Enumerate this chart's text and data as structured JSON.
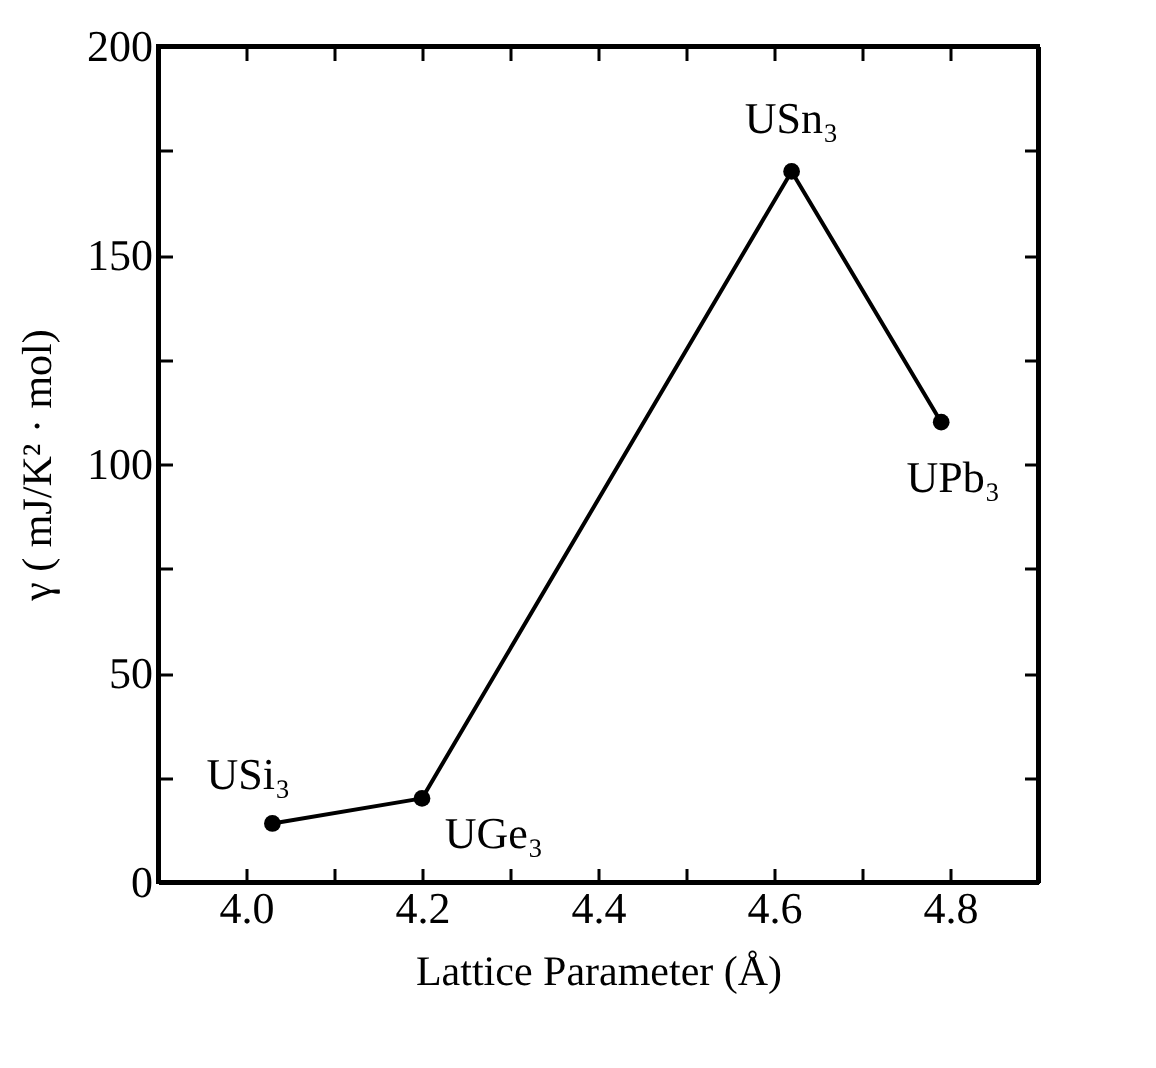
{
  "chart_data": {
    "type": "line",
    "xlabel": "Lattice Parameter (Å)",
    "ylabel": "γ ( mJ/K² · mol)",
    "x": [
      4.03,
      4.2,
      4.62,
      4.79
    ],
    "series": [
      {
        "color": "#000000",
        "values": [
          14,
          20,
          170,
          110
        ]
      }
    ],
    "marker": "circle",
    "grid": false,
    "legend": false,
    "xlim": [
      3.9,
      4.9
    ],
    "xticks": [
      {
        "value": 4,
        "label": "4.0"
      },
      {
        "value": 4.1,
        "label": null
      },
      {
        "value": 4.2,
        "label": "4.2"
      },
      {
        "value": 4.3,
        "label": null
      },
      {
        "value": 4.4,
        "label": "4.4"
      },
      {
        "value": 4.5,
        "label": null
      },
      {
        "value": 4.6,
        "label": "4.6"
      },
      {
        "value": 4.7,
        "label": null
      },
      {
        "value": 4.8,
        "label": "4.8"
      }
    ],
    "ylim": [
      0,
      200
    ],
    "yticks": [
      0,
      {
        "value": 25,
        "label": null
      },
      50,
      {
        "value": 75,
        "label": null
      },
      100,
      {
        "value": 125,
        "label": null
      },
      150,
      {
        "value": 175,
        "label": null
      },
      200
    ],
    "annotations": [
      {
        "text": "USi₃",
        "x": 4.03,
        "y": 14
      },
      {
        "text": "UGe₃",
        "x": 4.2,
        "y": 20
      },
      {
        "text": "USn₃",
        "x": 4.62,
        "y": 170
      },
      {
        "text": "UPb₃",
        "x": 4.79,
        "y": 110
      }
    ]
  }
}
